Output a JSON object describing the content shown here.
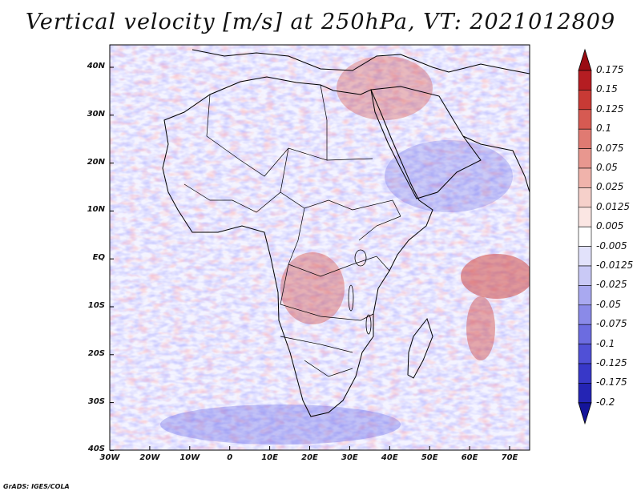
{
  "title": "Vertical velocity [m/s] at 250hPa, VT: 2021012809",
  "credit": "GrADS: IGES/COLA",
  "map": {
    "lat_labels": [
      "40N",
      "30N",
      "20N",
      "10N",
      "EQ",
      "10S",
      "20S",
      "30S",
      "40S"
    ],
    "lon_labels": [
      "30W",
      "20W",
      "10W",
      "0",
      "10E",
      "20E",
      "30E",
      "40E",
      "50E",
      "60E",
      "70E"
    ],
    "domain": {
      "lon_range": [
        -30,
        75
      ],
      "lat_range": [
        -40,
        45
      ]
    }
  },
  "colorbar": {
    "labels": [
      "0.175",
      "0.15",
      "0.125",
      "0.1",
      "0.075",
      "0.05",
      "0.025",
      "0.0125",
      "0.005",
      "-0.005",
      "-0.0125",
      "-0.025",
      "-0.05",
      "-0.075",
      "-0.1",
      "-0.125",
      "-0.175",
      "-0.2"
    ],
    "colors": [
      "#9a0c12",
      "#b51d22",
      "#c83a35",
      "#d65a52",
      "#e07a72",
      "#e8978f",
      "#f0b3ab",
      "#f6d0ca",
      "#fbe6e3",
      "#ffffff",
      "#e2e2fb",
      "#c9c9f6",
      "#a9a9f0",
      "#8a8ae8",
      "#6c6ce0",
      "#5050d6",
      "#3838c8",
      "#2424b4",
      "#14149a"
    ],
    "cap_top": "#9a0c12",
    "cap_bottom": "#14149a"
  }
}
